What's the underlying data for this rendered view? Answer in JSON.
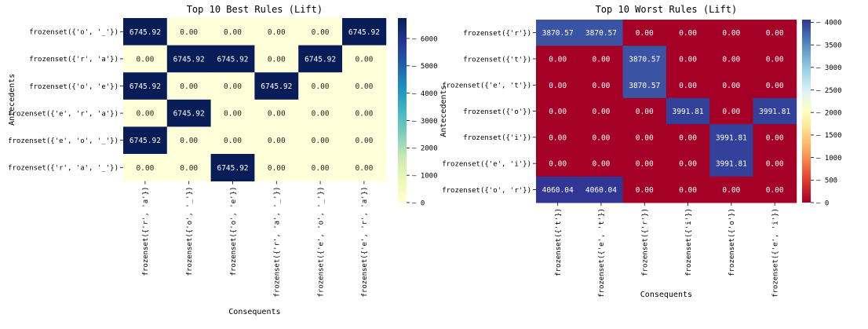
{
  "chart_data": [
    {
      "type": "heatmap",
      "title": "Top 10 Best Rules (Lift)",
      "xlabel": "Consequents",
      "ylabel": "Antecedents",
      "rows": [
        "frozenset({'o', '_'})",
        "frozenset({'r', 'a'})",
        "frozenset({'o', 'e'})",
        "frozenset({'e', 'r', 'a'})",
        "frozenset({'e', 'o', '_'})",
        "frozenset({'r', 'a', '_'})"
      ],
      "columns": [
        "frozenset({'r', 'a'})",
        "frozenset({'o', '_'})",
        "frozenset({'o', 'e'})",
        "frozenset({'r', 'a', '_'})",
        "frozenset({'e', 'o', '_'})",
        "frozenset({'e', 'r', 'a'})"
      ],
      "values": [
        [
          6745.92,
          0.0,
          0.0,
          0.0,
          0.0,
          6745.92
        ],
        [
          0.0,
          6745.92,
          6745.92,
          0.0,
          6745.92,
          0.0
        ],
        [
          6745.92,
          0.0,
          0.0,
          6745.92,
          0.0,
          0.0
        ],
        [
          0.0,
          6745.92,
          0.0,
          0.0,
          0.0,
          0.0
        ],
        [
          6745.92,
          0.0,
          0.0,
          0.0,
          0.0,
          0.0
        ],
        [
          0.0,
          0.0,
          6745.92,
          0.0,
          0.0,
          0.0
        ]
      ],
      "colormap": "YlGnBu",
      "vmin": 0,
      "vmax": 6745.92,
      "colorbar_ticks": [
        0,
        1000,
        2000,
        3000,
        4000,
        5000,
        6000
      ]
    },
    {
      "type": "heatmap",
      "title": "Top 10 Worst Rules (Lift)",
      "xlabel": "Consequents",
      "ylabel": "Antecedents",
      "rows": [
        "frozenset({'r'})",
        "frozenset({'t'})",
        "frozenset({'e', 't'})",
        "frozenset({'o'})",
        "frozenset({'i'})",
        "frozenset({'e', 'i'})",
        "frozenset({'o', 'r'})"
      ],
      "columns": [
        "frozenset({'t'})",
        "frozenset({'e', 't'})",
        "frozenset({'r'})",
        "frozenset({'i'})",
        "frozenset({'o'})",
        "frozenset({'e', 'i'})"
      ],
      "values": [
        [
          3870.57,
          3870.57,
          0.0,
          0.0,
          0.0,
          0.0
        ],
        [
          0.0,
          0.0,
          3870.57,
          0.0,
          0.0,
          0.0
        ],
        [
          0.0,
          0.0,
          3870.57,
          0.0,
          0.0,
          0.0
        ],
        [
          0.0,
          0.0,
          0.0,
          3991.81,
          0.0,
          3991.81
        ],
        [
          0.0,
          0.0,
          0.0,
          0.0,
          3991.81,
          0.0
        ],
        [
          0.0,
          0.0,
          0.0,
          0.0,
          3991.81,
          0.0
        ],
        [
          4060.04,
          4060.04,
          0.0,
          0.0,
          0.0,
          0.0
        ]
      ],
      "colormap": "RdYlBu",
      "vmin": 0,
      "vmax": 4060.04,
      "colorbar_ticks": [
        0,
        500,
        1000,
        1500,
        2000,
        2500,
        3000,
        3500,
        4000
      ]
    }
  ]
}
